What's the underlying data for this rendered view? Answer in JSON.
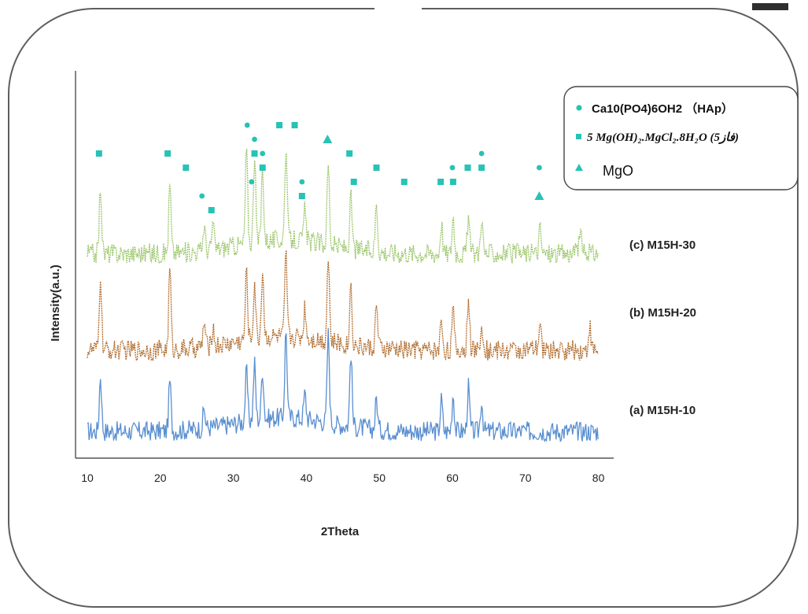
{
  "colors": {
    "teal": "#27c3b4",
    "green": "#9bc56a",
    "brown": "#b06b2c",
    "blue": "#5a8fd0",
    "frame": "#5e5e5e"
  },
  "chart_data": {
    "type": "line",
    "xlabel": "2Theta",
    "ylabel": "Intensity(a.u.)",
    "xlim": [
      10,
      80
    ],
    "xticks": [
      10,
      20,
      30,
      40,
      50,
      60,
      70,
      80
    ],
    "series": [
      {
        "name": "(a)  M15H-10",
        "color": "#5a8fd0",
        "peaks": [
          [
            11.8,
            9
          ],
          [
            21.3,
            8
          ],
          [
            26.0,
            3
          ],
          [
            31.8,
            8
          ],
          [
            32.9,
            9
          ],
          [
            34.0,
            8
          ],
          [
            37.2,
            14
          ],
          [
            39.8,
            4
          ],
          [
            43.0,
            14
          ],
          [
            46.1,
            12
          ],
          [
            49.6,
            5
          ],
          [
            58.5,
            5
          ],
          [
            60.1,
            6
          ],
          [
            62.2,
            7
          ],
          [
            64.0,
            5
          ]
        ]
      },
      {
        "name": "(b)  M15H-20",
        "color": "#b06b2c",
        "peaks": [
          [
            11.8,
            12
          ],
          [
            21.3,
            13
          ],
          [
            26.0,
            4
          ],
          [
            27.2,
            3
          ],
          [
            31.8,
            11
          ],
          [
            32.9,
            9
          ],
          [
            34.0,
            11
          ],
          [
            37.2,
            13
          ],
          [
            39.8,
            5
          ],
          [
            43.0,
            14
          ],
          [
            46.1,
            10
          ],
          [
            49.6,
            7
          ],
          [
            58.5,
            5
          ],
          [
            60.1,
            6
          ],
          [
            62.2,
            9
          ],
          [
            64.0,
            5
          ],
          [
            72.0,
            4
          ],
          [
            78.8,
            4
          ]
        ]
      },
      {
        "name": "(c)  M15H-30",
        "color": "#9bc56a",
        "peaks": [
          [
            11.8,
            11
          ],
          [
            21.3,
            11
          ],
          [
            26.0,
            4
          ],
          [
            27.2,
            4
          ],
          [
            31.8,
            15
          ],
          [
            32.9,
            14
          ],
          [
            34.0,
            12
          ],
          [
            37.2,
            15
          ],
          [
            39.8,
            5
          ],
          [
            43.0,
            13
          ],
          [
            46.1,
            8
          ],
          [
            49.6,
            8
          ],
          [
            58.5,
            5
          ],
          [
            60.1,
            6
          ],
          [
            62.2,
            6
          ],
          [
            64.0,
            6
          ],
          [
            72.0,
            4
          ],
          [
            77.5,
            4
          ]
        ]
      }
    ],
    "markers": [
      {
        "shape": "square",
        "x": 11.6,
        "row": 0
      },
      {
        "shape": "square",
        "x": 21.0,
        "row": 0
      },
      {
        "shape": "square",
        "x": 23.5,
        "row": 1
      },
      {
        "shape": "circle",
        "x": 25.7,
        "row": 3
      },
      {
        "shape": "square",
        "x": 27.0,
        "row": 4
      },
      {
        "shape": "circle",
        "x": 31.9,
        "row": -2
      },
      {
        "shape": "circle",
        "x": 32.5,
        "row": 2
      },
      {
        "shape": "circle",
        "x": 32.9,
        "row": -1
      },
      {
        "shape": "square",
        "x": 32.9,
        "row": 0
      },
      {
        "shape": "circle",
        "x": 34.0,
        "row": 0
      },
      {
        "shape": "square",
        "x": 34.0,
        "row": 1
      },
      {
        "shape": "square",
        "x": 36.3,
        "row": -2
      },
      {
        "shape": "square",
        "x": 38.4,
        "row": -2
      },
      {
        "shape": "circle",
        "x": 39.4,
        "row": 2
      },
      {
        "shape": "square",
        "x": 39.4,
        "row": 3
      },
      {
        "shape": "triangle",
        "x": 42.9,
        "row": -1
      },
      {
        "shape": "square",
        "x": 45.9,
        "row": 0
      },
      {
        "shape": "square",
        "x": 46.5,
        "row": 2
      },
      {
        "shape": "square",
        "x": 49.6,
        "row": 1
      },
      {
        "shape": "square",
        "x": 53.4,
        "row": 2
      },
      {
        "shape": "square",
        "x": 58.4,
        "row": 2
      },
      {
        "shape": "circle",
        "x": 60.0,
        "row": 1
      },
      {
        "shape": "square",
        "x": 60.1,
        "row": 2
      },
      {
        "shape": "square",
        "x": 62.1,
        "row": 1
      },
      {
        "shape": "circle",
        "x": 64.0,
        "row": 0
      },
      {
        "shape": "square",
        "x": 64.0,
        "row": 1
      },
      {
        "shape": "circle",
        "x": 71.9,
        "row": 1
      },
      {
        "shape": "triangle",
        "x": 71.9,
        "row": 3
      }
    ],
    "legend": [
      {
        "shape": "circle",
        "label": "Ca10(PO4)6OH2  （HAp）"
      },
      {
        "shape": "square",
        "label": "5 Mg(OH)₂.MgCl₂.8H₂O (5فاز)"
      },
      {
        "shape": "triangle",
        "label": "MgO"
      }
    ],
    "legend_position": "top-right",
    "grid": false
  }
}
